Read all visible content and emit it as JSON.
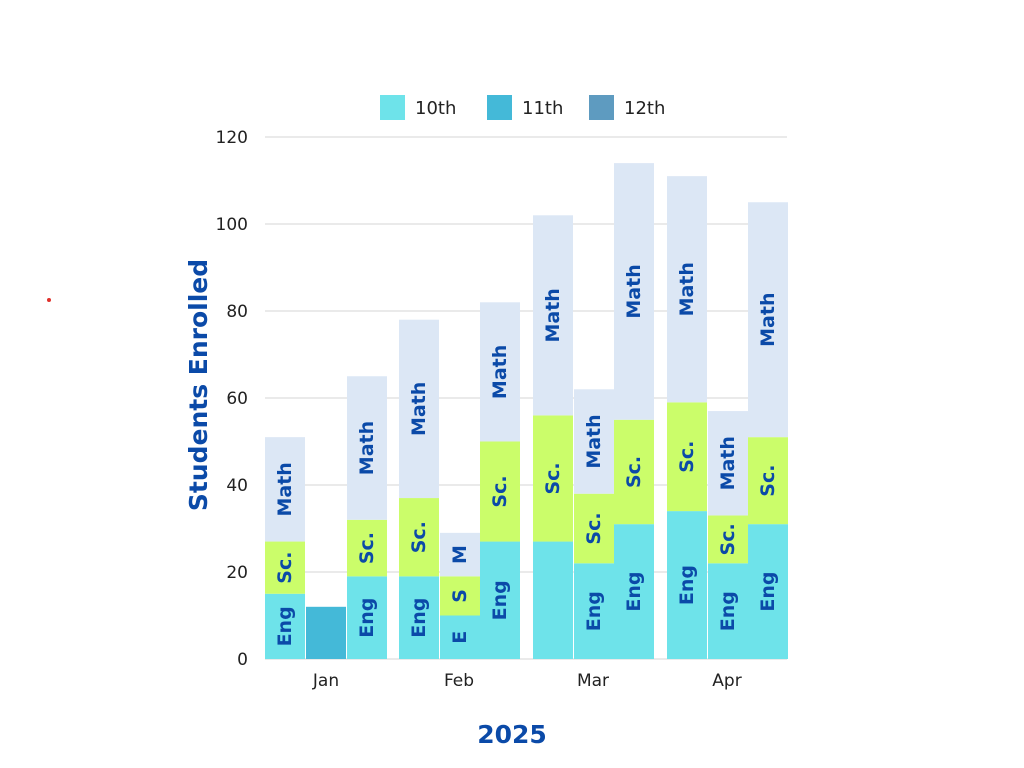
{
  "chart_data": {
    "type": "bar",
    "stacked": true,
    "xlabel": "2025",
    "ylabel": "Students Enrolled",
    "ylim": [
      0,
      120
    ],
    "yticks": [
      0,
      20,
      40,
      60,
      80,
      100,
      120
    ],
    "grid": true,
    "legend_position": "top",
    "legend": [
      {
        "name": "10th",
        "color": "#6ee3ea"
      },
      {
        "name": "11th",
        "color": "#44b9d8"
      },
      {
        "name": "12th",
        "color": "#5e9bc0"
      }
    ],
    "segment_colors": {
      "Eng": "#6ee3ea",
      "Sc.": "#cbfd6a",
      "Math": "#dce7f5",
      "solid": "#44b9d8"
    },
    "months": [
      "Jan",
      "Feb",
      "Mar",
      "Apr"
    ],
    "bars": [
      {
        "month": "Jan",
        "segments": [
          {
            "label": "Eng",
            "value": 15
          },
          {
            "label": "Sc.",
            "value": 12
          },
          {
            "label": "Math",
            "value": 24
          }
        ]
      },
      {
        "month": "Jan",
        "segments": [
          {
            "label": "",
            "value": 12
          }
        ]
      },
      {
        "month": "Jan",
        "segments": [
          {
            "label": "Eng",
            "value": 19
          },
          {
            "label": "Sc.",
            "value": 13
          },
          {
            "label": "Math",
            "value": 33
          }
        ]
      },
      {
        "month": "Feb",
        "segments": [
          {
            "label": "Eng",
            "value": 19
          },
          {
            "label": "Sc.",
            "value": 18
          },
          {
            "label": "Math",
            "value": 41
          }
        ]
      },
      {
        "month": "Feb",
        "segments": [
          {
            "label": "E",
            "value": 10
          },
          {
            "label": "S",
            "value": 9
          },
          {
            "label": "M",
            "value": 10
          }
        ]
      },
      {
        "month": "Feb",
        "segments": [
          {
            "label": "Eng",
            "value": 27
          },
          {
            "label": "Sc.",
            "value": 23
          },
          {
            "label": "Math",
            "value": 32
          }
        ]
      },
      {
        "month": "Mar",
        "segments": [
          {
            "label": "",
            "value": 27
          },
          {
            "label": "Sc.",
            "value": 29
          },
          {
            "label": "Math",
            "value": 46
          }
        ]
      },
      {
        "month": "Mar",
        "segments": [
          {
            "label": "Eng",
            "value": 22
          },
          {
            "label": "Sc.",
            "value": 16
          },
          {
            "label": "Math",
            "value": 24
          }
        ]
      },
      {
        "month": "Mar",
        "segments": [
          {
            "label": "Eng",
            "value": 31
          },
          {
            "label": "Sc.",
            "value": 24
          },
          {
            "label": "Math",
            "value": 59
          }
        ]
      },
      {
        "month": "Apr",
        "segments": [
          {
            "label": "Eng",
            "value": 34
          },
          {
            "label": "Sc.",
            "value": 25
          },
          {
            "label": "Math",
            "value": 52
          }
        ]
      },
      {
        "month": "Apr",
        "segments": [
          {
            "label": "Eng",
            "value": 22
          },
          {
            "label": "Sc.",
            "value": 11
          },
          {
            "label": "Math",
            "value": 24
          }
        ]
      },
      {
        "month": "Apr",
        "segments": [
          {
            "label": "Eng",
            "value": 31
          },
          {
            "label": "Sc.",
            "value": 20
          },
          {
            "label": "Math",
            "value": 54
          }
        ]
      }
    ]
  }
}
